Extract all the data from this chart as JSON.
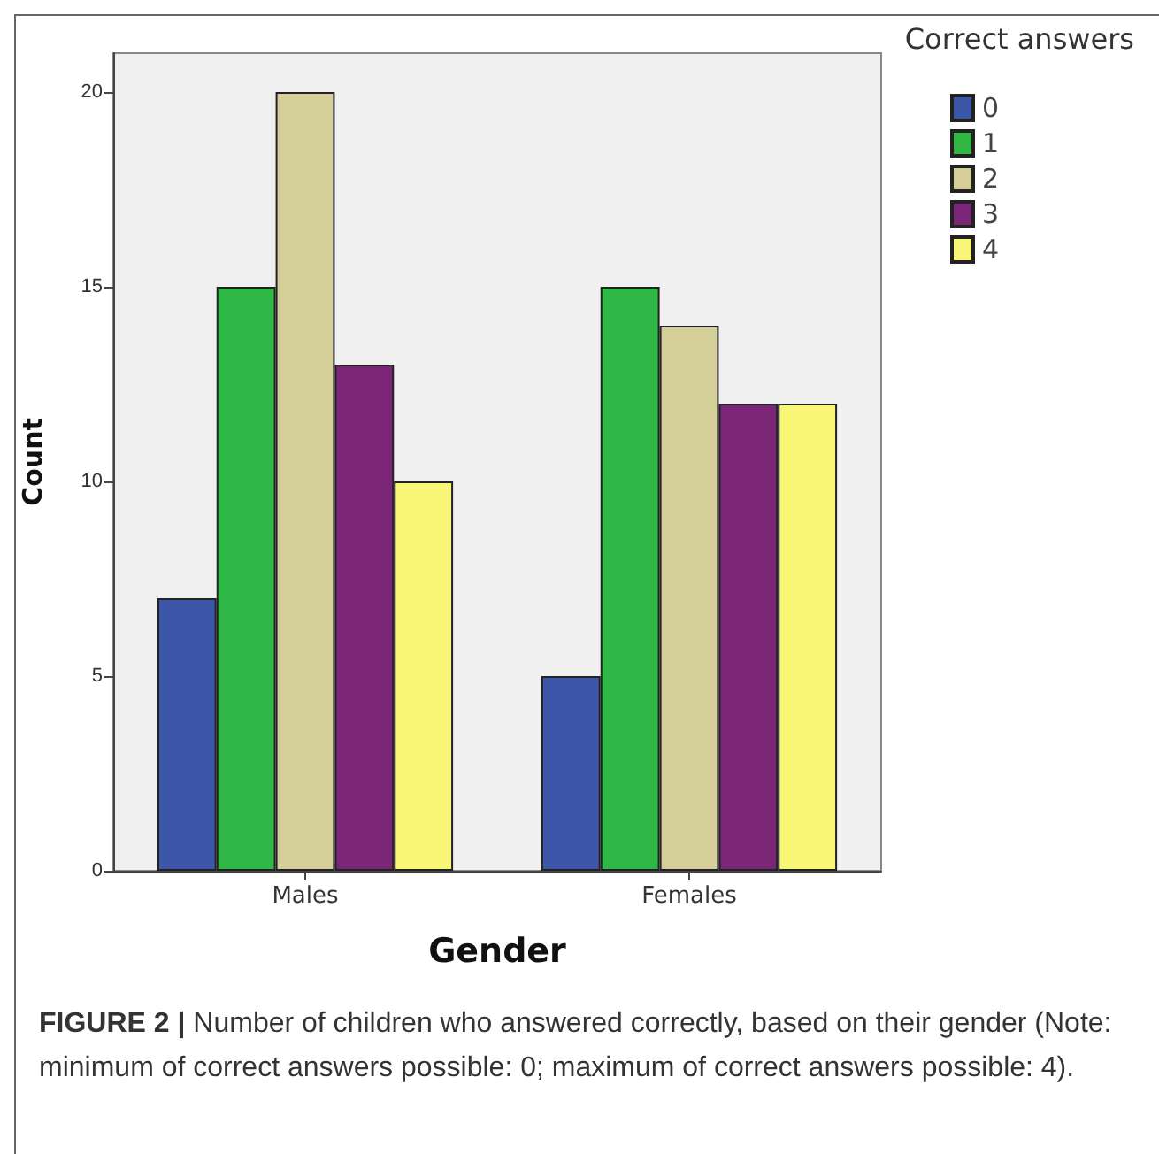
{
  "chart_data": {
    "type": "bar",
    "xlabel": "Gender",
    "ylabel": "Count",
    "legend_title": "Correct answers",
    "categories": [
      "Males",
      "Females"
    ],
    "series": [
      {
        "name": "0",
        "color": "#3c56a8",
        "values": [
          7,
          5
        ]
      },
      {
        "name": "1",
        "color": "#2fb846",
        "values": [
          15,
          15
        ]
      },
      {
        "name": "2",
        "color": "#d4cf98",
        "values": [
          20,
          14
        ]
      },
      {
        "name": "3",
        "color": "#7b2577",
        "values": [
          13,
          12
        ]
      },
      {
        "name": "4",
        "color": "#f9f677",
        "values": [
          10,
          12
        ]
      }
    ],
    "ylim": [
      0,
      21
    ],
    "yticks": [
      0,
      5,
      10,
      15,
      20
    ],
    "grid": false,
    "legend": "top right",
    "annotations": [
      "FIGURE 2 | Number of children who answered correctly, based on their gender (Note: minimum of correct answers possible: 0; maximum of correct answers possible: 4)."
    ]
  }
}
